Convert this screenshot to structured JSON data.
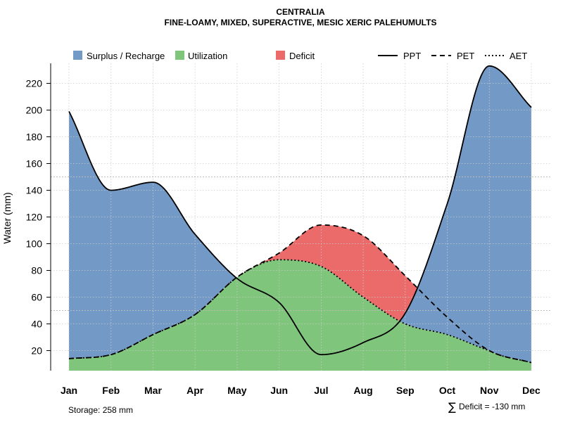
{
  "chart_data": {
    "type": "area",
    "title": "CENTRALIA",
    "subtitle": "FINE-LOAMY, MIXED, SUPERACTIVE, MESIC XERIC PALEHUMULTS",
    "xlabel": "",
    "ylabel": "Water (mm)",
    "categories": [
      "Jan",
      "Feb",
      "Mar",
      "Apr",
      "May",
      "Jun",
      "Jul",
      "Aug",
      "Sep",
      "Oct",
      "Nov",
      "Dec"
    ],
    "ylim": [
      5,
      235
    ],
    "yticks": [
      20,
      40,
      60,
      80,
      100,
      120,
      140,
      160,
      180,
      200,
      220
    ],
    "grid": true,
    "series": [
      {
        "name": "PPT",
        "line": "solid",
        "values": [
          199,
          140,
          146,
          107,
          74,
          56,
          17,
          26,
          48,
          130,
          233,
          202
        ]
      },
      {
        "name": "PET",
        "line": "dashed",
        "values": [
          14,
          17,
          32,
          47,
          75,
          93,
          114,
          106,
          76,
          45,
          20,
          11
        ]
      },
      {
        "name": "AET",
        "line": "dotted",
        "values": [
          14,
          17,
          32,
          47,
          75,
          88,
          83,
          60,
          40,
          32,
          20,
          11
        ]
      }
    ],
    "areas": [
      {
        "name": "Surplus / Recharge",
        "color": "#7399C6"
      },
      {
        "name": "Utilization",
        "color": "#7FC57B"
      },
      {
        "name": "Deficit",
        "color": "#EB6B6B"
      }
    ],
    "reference_lines_y": [
      150,
      50
    ],
    "legend_position": "top",
    "annotations": {
      "storage": "Storage: 258 mm",
      "deficit_symbol": "∑",
      "deficit": "Deficit = -130 mm"
    }
  }
}
